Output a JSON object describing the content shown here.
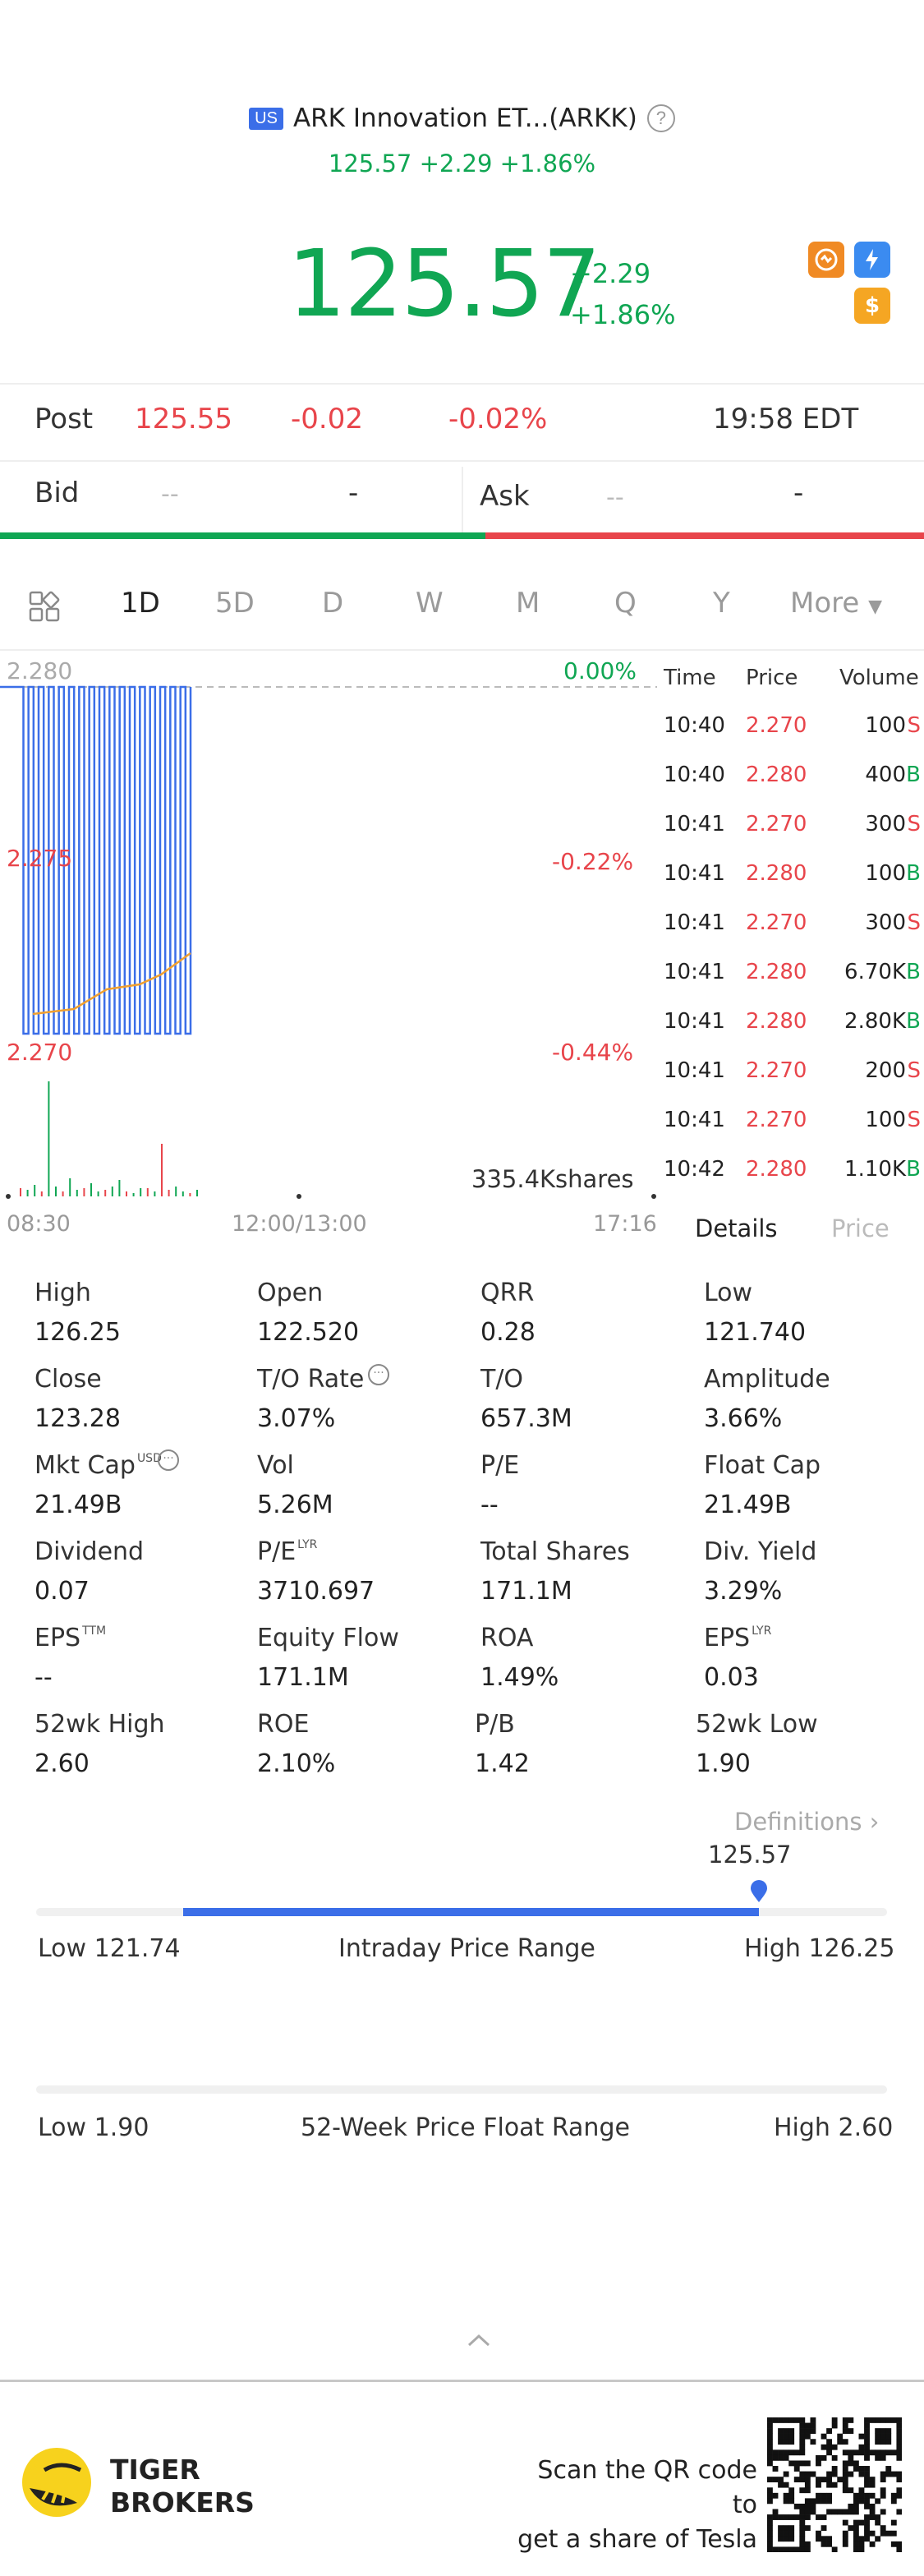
{
  "header": {
    "market_badge": "US",
    "title": "ARK Innovation ET...(ARKK)",
    "sub_quote": "125.57 +2.29 +1.86%",
    "price": "125.57",
    "change_abs": "+2.29",
    "change_pct": "+1.86%"
  },
  "post": {
    "label": "Post",
    "price": "125.55",
    "change": "-0.02",
    "change_pct": "-0.02%",
    "time": "19:58 EDT"
  },
  "bid_ask": {
    "bid_label": "Bid",
    "bid_price": "--",
    "bid_size": "-",
    "ask_label": "Ask",
    "ask_price": "--",
    "ask_size": "-",
    "bid_share": 0.525
  },
  "tabs": {
    "items": [
      "1D",
      "5D",
      "D",
      "W",
      "M",
      "Q",
      "Y"
    ],
    "active": "1D",
    "more": "More"
  },
  "chart": {
    "y_top": "2.280",
    "y_mid": "2.275",
    "y_bottom": "2.270",
    "pct_top": "0.00%",
    "pct_mid": "-0.22%",
    "pct_bottom": "-0.44%",
    "volume_label": "335.4Kshares",
    "time_start": "08:30",
    "time_mid": "12:00/13:00",
    "time_end": "17:16"
  },
  "chart_data": {
    "type": "line",
    "title": "",
    "xlabel": "",
    "ylabel": "",
    "x_ticks": [
      "08:30",
      "12:00/13:00",
      "17:16"
    ],
    "ylim": [
      2.27,
      2.28
    ],
    "series": [
      {
        "values": [
          2.28,
          2.28,
          2.28,
          2.28,
          2.27,
          2.28,
          2.27,
          2.28,
          2.27,
          2.28,
          2.27,
          2.28,
          2.27,
          2.28,
          2.27,
          2.28,
          2.27,
          2.28,
          2.27,
          2.28,
          2.27,
          2.28,
          2.27,
          2.28,
          2.27,
          2.28,
          2.27,
          2.28,
          2.27,
          2.28,
          2.27,
          2.28,
          2.27,
          2.28,
          2.27,
          2.28,
          2.27,
          2.28
        ]
      }
    ]
  },
  "trades": {
    "headers": {
      "time": "Time",
      "price": "Price",
      "volume": "Volume"
    },
    "rows": [
      {
        "time": "10:40",
        "price": "2.270",
        "volume": "100",
        "side": "S"
      },
      {
        "time": "10:40",
        "price": "2.280",
        "volume": "400",
        "side": "B"
      },
      {
        "time": "10:41",
        "price": "2.270",
        "volume": "300",
        "side": "S"
      },
      {
        "time": "10:41",
        "price": "2.280",
        "volume": "100",
        "side": "B"
      },
      {
        "time": "10:41",
        "price": "2.270",
        "volume": "300",
        "side": "S"
      },
      {
        "time": "10:41",
        "price": "2.280",
        "volume": "6.70K",
        "side": "B"
      },
      {
        "time": "10:41",
        "price": "2.280",
        "volume": "2.80K",
        "side": "B"
      },
      {
        "time": "10:41",
        "price": "2.270",
        "volume": "200",
        "side": "S"
      },
      {
        "time": "10:41",
        "price": "2.270",
        "volume": "100",
        "side": "S"
      },
      {
        "time": "10:42",
        "price": "2.280",
        "volume": "1.10K",
        "side": "B"
      }
    ],
    "tab_details": "Details",
    "tab_price": "Price"
  },
  "stats": [
    {
      "label": "High",
      "value": "126.25"
    },
    {
      "label": "Open",
      "value": "122.520"
    },
    {
      "label": "QRR",
      "value": "0.28"
    },
    {
      "label": "Low",
      "value": "121.740"
    },
    {
      "label": "Close",
      "value": "123.28"
    },
    {
      "label": "T/O Rate",
      "value": "3.07%"
    },
    {
      "label": "T/O",
      "value": "657.3M"
    },
    {
      "label": "Amplitude",
      "value": "3.66%"
    },
    {
      "label": "Mkt Cap",
      "value": "21.49B",
      "sup": "USD"
    },
    {
      "label": "Vol",
      "value": "5.26M"
    },
    {
      "label": "P/E",
      "value": "--"
    },
    {
      "label": "Float Cap",
      "value": "21.49B"
    },
    {
      "label": "Dividend",
      "value": "0.07"
    },
    {
      "label": "P/E",
      "value": "3710.697",
      "sup": "LYR"
    },
    {
      "label": "Total Shares",
      "value": "171.1M"
    },
    {
      "label": "Div. Yield",
      "value": "3.29%"
    },
    {
      "label": "EPS",
      "value": "--",
      "sup": "TTM"
    },
    {
      "label": "Equity Flow",
      "value": "171.1M"
    },
    {
      "label": "ROA",
      "value": "1.49%"
    },
    {
      "label": "EPS",
      "value": "0.03",
      "sup": "LYR"
    },
    {
      "label": "52wk High",
      "value": "2.60"
    },
    {
      "label": "ROE",
      "value": "2.10%"
    },
    {
      "label": "P/B",
      "value": "1.42"
    },
    {
      "label": "52wk Low",
      "value": "1.90"
    }
  ],
  "definitions": "Definitions",
  "intraday": {
    "current": "125.57",
    "low": "Low 121.74",
    "title": "Intraday Price Range",
    "high": "High 126.25",
    "low_value": 121.74,
    "high_value": 126.25,
    "open_value": 122.52,
    "current_value": 125.57
  },
  "week52": {
    "low": "Low 1.90",
    "title": "52-Week Price Float Range",
    "high": "High 2.60"
  },
  "footer": {
    "brand_line1": "TIGER",
    "brand_line2": "BROKERS",
    "scan_line1": "Scan the QR code to",
    "scan_line2": "get a share of Tesla"
  },
  "colors": {
    "up": "#10a653",
    "down": "#e8454b",
    "accent": "#3b6ee8"
  }
}
